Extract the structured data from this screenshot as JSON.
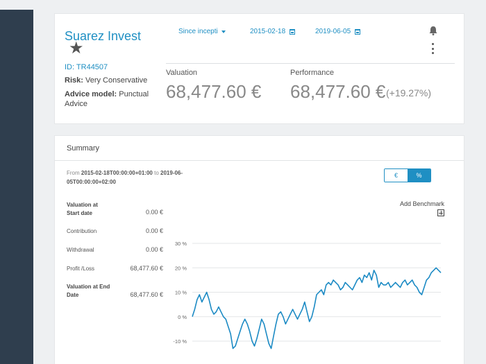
{
  "portfolio": {
    "name": "Suarez Invest",
    "id": "ID: TR44507",
    "risk_label": "Risk:",
    "risk_value": "Very Conservative",
    "advice_label": "Advice model:",
    "advice_value_1": "Punctual",
    "advice_value_2": "Advice"
  },
  "filters": {
    "period": "Since incepti",
    "start_date": "2015-02-18",
    "end_date": "2019-06-05"
  },
  "icons": {
    "favorite": "star-icon",
    "period_dropdown": "caret-down-icon",
    "date": "calendar-icon",
    "notifications": "bell-icon",
    "menu": "kebab-icon",
    "benchmark": "plus-box-icon"
  },
  "metrics": {
    "valuation_label": "Valuation",
    "valuation_value": "68,477.60 €",
    "performance_label": "Performance",
    "performance_value": "68,477.60 €",
    "performance_pct": "(+19.27%)"
  },
  "summary": {
    "title": "Summary",
    "range_from": "From",
    "range_start": "2015-02-18T00:00:00+01:00",
    "range_to": "to",
    "range_end_1": "2019-06-",
    "range_end_2": "05T00:00:00+02:00",
    "toggle_currency": "€",
    "toggle_percent": "%",
    "add_benchmark": "Add Benchmark",
    "stats": [
      {
        "label_1": "Valuation at",
        "label_2": "Start date",
        "value": "0.00 €",
        "bold": true
      },
      {
        "label_1": "Contribution",
        "label_2": "",
        "value": "0.00 €",
        "bold": false
      },
      {
        "label_1": "Withdrawal",
        "label_2": "",
        "value": "0.00 €",
        "bold": false
      },
      {
        "label_1": "Profit /Loss",
        "label_2": "",
        "value": "68,477.60 €",
        "bold": false
      },
      {
        "label_1": "Valuation at End",
        "label_2": "Date",
        "value": "68,477.60 €",
        "bold": true
      }
    ]
  },
  "colors": {
    "accent": "#1f8fc3",
    "sidebar": "#2f3e4e",
    "line": "#1b8ac4"
  },
  "chart_data": {
    "type": "line",
    "ylim": [
      -10,
      30
    ],
    "yticks": [
      "30 %",
      "20 %",
      "10 %",
      "0 %",
      "-10 %"
    ],
    "ytick_values": [
      30,
      20,
      10,
      0,
      -10
    ],
    "series": [
      {
        "values": [
          0,
          3,
          7,
          9,
          6,
          8,
          10,
          7,
          3,
          1,
          2,
          4,
          2,
          0,
          -1,
          -4,
          -7,
          -13,
          -12,
          -9,
          -6,
          -3,
          -1,
          -3,
          -6,
          -10,
          -12,
          -9,
          -5,
          -1,
          -3,
          -7,
          -11,
          -13,
          -8,
          -3,
          1,
          2,
          0,
          -3,
          -1,
          1,
          3,
          1,
          -1,
          1,
          3,
          6,
          2,
          -2,
          0,
          4,
          9,
          10,
          11,
          9,
          13,
          14,
          13,
          15,
          14,
          13,
          11,
          12,
          14,
          13,
          12,
          11,
          13,
          15,
          16,
          14,
          17,
          16,
          18,
          15,
          19,
          17,
          12,
          14,
          13,
          13,
          14,
          12,
          13,
          14,
          13,
          12,
          14,
          15,
          13,
          14,
          15,
          13,
          12,
          10,
          9,
          12,
          15,
          16,
          18,
          19,
          20,
          19,
          18
        ]
      }
    ]
  }
}
